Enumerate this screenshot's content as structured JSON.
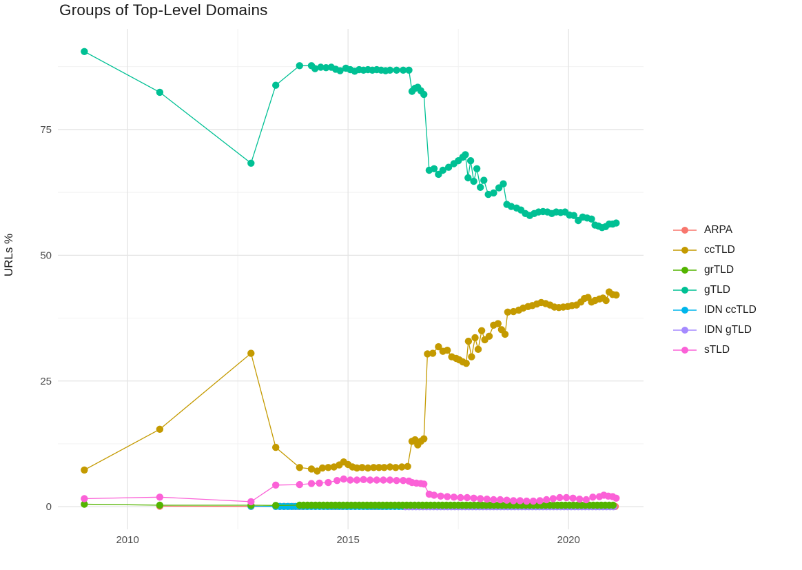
{
  "title": "Groups of Top-Level Domains",
  "y_axis": {
    "title": "URLs %",
    "ticks": [
      0,
      25,
      50,
      75
    ],
    "minor_ticks": [
      12.5,
      37.5,
      62.5,
      87.5
    ],
    "range": [
      -4.5,
      95
    ]
  },
  "x_axis": {
    "ticks": [
      2010,
      2015,
      2020
    ],
    "minor_ticks": [
      2012.5,
      2017.5
    ],
    "range": [
      2008.42,
      2021.7
    ]
  },
  "legend": {
    "items": [
      {
        "label": "ARPA",
        "color": "#F8766D"
      },
      {
        "label": "ccTLD",
        "color": "#C49A00"
      },
      {
        "label": "grTLD",
        "color": "#53B400"
      },
      {
        "label": "gTLD",
        "color": "#00C094"
      },
      {
        "label": "IDN ccTLD",
        "color": "#00B6EB"
      },
      {
        "label": "IDN gTLD",
        "color": "#A58AFF"
      },
      {
        "label": "sTLD",
        "color": "#FB61D7"
      }
    ]
  },
  "chart_data": {
    "type": "line",
    "title": "Groups of Top-Level Domains",
    "xlabel": "",
    "ylabel": "URLs %",
    "x_range": [
      2008.42,
      2021.7
    ],
    "y_range": [
      -4.5,
      95
    ],
    "x_ticks": [
      2010,
      2015,
      2020
    ],
    "y_ticks": [
      0,
      25,
      50,
      75
    ],
    "grid": true,
    "legend_position": "right",
    "series": [
      {
        "name": "ARPA",
        "color": "#F8766D",
        "points": [
          [
            2010.73,
            0.1
          ],
          [
            2012.8,
            0.05
          ]
        ],
        "runs": [
          {
            "from": 2013.36,
            "to": 2021.08,
            "step": 0.1,
            "y": 0.05
          }
        ]
      },
      {
        "name": "IDN ccTLD",
        "color": "#00B6EB",
        "points": [
          [
            2012.8,
            0.1
          ]
        ],
        "runs": [
          {
            "from": 2013.36,
            "to": 2021.08,
            "step": 0.09,
            "y": 0.05
          }
        ]
      },
      {
        "name": "IDN gTLD",
        "color": "#A58AFF",
        "points": [],
        "runs": [
          {
            "from": 2016.3,
            "to": 2021.08,
            "step": 0.08,
            "y": 0.0
          }
        ]
      },
      {
        "name": "grTLD",
        "color": "#53B400",
        "points": [
          [
            2009.02,
            0.5
          ],
          [
            2010.73,
            0.3
          ],
          [
            2012.8,
            0.3
          ],
          [
            2013.36,
            0.25
          ]
        ],
        "runs": [
          {
            "from": 2013.9,
            "to": 2021.08,
            "step": 0.09,
            "y": 0.3
          }
        ]
      },
      {
        "name": "sTLD",
        "color": "#FB61D7",
        "points": [
          [
            2009.02,
            1.6
          ],
          [
            2010.73,
            1.9
          ],
          [
            2012.8,
            1.0
          ],
          [
            2013.36,
            4.3
          ],
          [
            2013.9,
            4.4
          ],
          [
            2014.17,
            4.6
          ],
          [
            2014.35,
            4.7
          ],
          [
            2014.55,
            4.8
          ],
          [
            2014.75,
            5.2
          ],
          [
            2014.9,
            5.5
          ],
          [
            2015.05,
            5.3
          ],
          [
            2015.2,
            5.3
          ],
          [
            2015.35,
            5.4
          ],
          [
            2015.5,
            5.3
          ],
          [
            2015.65,
            5.3
          ],
          [
            2015.8,
            5.3
          ],
          [
            2015.95,
            5.3
          ],
          [
            2016.1,
            5.2
          ],
          [
            2016.25,
            5.2
          ],
          [
            2016.38,
            5.1
          ],
          [
            2016.45,
            4.8
          ],
          [
            2016.55,
            4.7
          ],
          [
            2016.65,
            4.6
          ],
          [
            2016.72,
            4.5
          ],
          [
            2016.84,
            2.5
          ],
          [
            2016.95,
            2.3
          ],
          [
            2017.1,
            2.1
          ],
          [
            2017.25,
            2.0
          ],
          [
            2017.4,
            1.9
          ],
          [
            2017.55,
            1.8
          ],
          [
            2017.7,
            1.8
          ],
          [
            2017.85,
            1.7
          ],
          [
            2018.0,
            1.6
          ],
          [
            2018.15,
            1.5
          ],
          [
            2018.3,
            1.4
          ],
          [
            2018.45,
            1.4
          ],
          [
            2018.6,
            1.3
          ],
          [
            2018.75,
            1.2
          ],
          [
            2018.9,
            1.2
          ],
          [
            2019.05,
            1.1
          ],
          [
            2019.2,
            1.1
          ],
          [
            2019.35,
            1.2
          ],
          [
            2019.5,
            1.4
          ],
          [
            2019.65,
            1.6
          ],
          [
            2019.8,
            1.8
          ],
          [
            2019.95,
            1.8
          ],
          [
            2020.1,
            1.7
          ],
          [
            2020.25,
            1.5
          ],
          [
            2020.4,
            1.4
          ],
          [
            2020.55,
            1.9
          ],
          [
            2020.7,
            2.0
          ],
          [
            2020.8,
            2.3
          ],
          [
            2020.9,
            2.1
          ],
          [
            2021.0,
            2.0
          ],
          [
            2021.08,
            1.7
          ]
        ],
        "runs": []
      },
      {
        "name": "ccTLD",
        "color": "#C49A00",
        "points": [
          [
            2009.02,
            7.3
          ],
          [
            2010.73,
            15.4
          ],
          [
            2012.8,
            30.5
          ],
          [
            2013.36,
            11.8
          ],
          [
            2013.9,
            7.8
          ],
          [
            2014.17,
            7.5
          ],
          [
            2014.3,
            7.1
          ],
          [
            2014.42,
            7.7
          ],
          [
            2014.55,
            7.8
          ],
          [
            2014.68,
            7.9
          ],
          [
            2014.8,
            8.3
          ],
          [
            2014.9,
            8.9
          ],
          [
            2015.0,
            8.4
          ],
          [
            2015.1,
            7.9
          ],
          [
            2015.2,
            7.7
          ],
          [
            2015.32,
            7.8
          ],
          [
            2015.45,
            7.7
          ],
          [
            2015.58,
            7.8
          ],
          [
            2015.7,
            7.8
          ],
          [
            2015.82,
            7.8
          ],
          [
            2015.95,
            7.9
          ],
          [
            2016.08,
            7.8
          ],
          [
            2016.22,
            7.9
          ],
          [
            2016.35,
            8.0
          ],
          [
            2016.45,
            13.0
          ],
          [
            2016.52,
            13.3
          ],
          [
            2016.58,
            12.3
          ],
          [
            2016.65,
            13.0
          ],
          [
            2016.72,
            13.5
          ],
          [
            2016.8,
            30.4
          ],
          [
            2016.92,
            30.5
          ],
          [
            2017.05,
            31.8
          ],
          [
            2017.15,
            30.9
          ],
          [
            2017.25,
            31.1
          ],
          [
            2017.35,
            29.8
          ],
          [
            2017.45,
            29.5
          ],
          [
            2017.52,
            29.2
          ],
          [
            2017.6,
            28.8
          ],
          [
            2017.68,
            28.5
          ],
          [
            2017.73,
            32.9
          ],
          [
            2017.8,
            29.8
          ],
          [
            2017.88,
            33.6
          ],
          [
            2017.95,
            31.3
          ],
          [
            2018.03,
            35.0
          ],
          [
            2018.1,
            33.2
          ],
          [
            2018.2,
            33.9
          ],
          [
            2018.3,
            36.1
          ],
          [
            2018.4,
            36.4
          ],
          [
            2018.48,
            35.2
          ],
          [
            2018.56,
            34.3
          ],
          [
            2018.62,
            38.7
          ],
          [
            2018.75,
            38.8
          ],
          [
            2018.87,
            39.1
          ],
          [
            2018.97,
            39.5
          ],
          [
            2019.08,
            39.8
          ],
          [
            2019.18,
            40.0
          ],
          [
            2019.28,
            40.3
          ],
          [
            2019.38,
            40.6
          ],
          [
            2019.48,
            40.4
          ],
          [
            2019.58,
            40.1
          ],
          [
            2019.68,
            39.7
          ],
          [
            2019.78,
            39.6
          ],
          [
            2019.88,
            39.7
          ],
          [
            2019.98,
            39.8
          ],
          [
            2020.08,
            40.0
          ],
          [
            2020.18,
            40.1
          ],
          [
            2020.28,
            40.7
          ],
          [
            2020.36,
            41.4
          ],
          [
            2020.44,
            41.6
          ],
          [
            2020.52,
            40.7
          ],
          [
            2020.6,
            41.0
          ],
          [
            2020.7,
            41.3
          ],
          [
            2020.78,
            41.5
          ],
          [
            2020.85,
            41.0
          ],
          [
            2020.92,
            42.7
          ],
          [
            2021.0,
            42.2
          ],
          [
            2021.08,
            42.1
          ]
        ],
        "runs": []
      },
      {
        "name": "gTLD",
        "color": "#00C094",
        "points": [
          [
            2009.02,
            90.5
          ],
          [
            2010.73,
            82.4
          ],
          [
            2012.8,
            68.3
          ],
          [
            2013.36,
            83.8
          ],
          [
            2013.9,
            87.7
          ],
          [
            2014.17,
            87.7
          ],
          [
            2014.25,
            87.1
          ],
          [
            2014.38,
            87.4
          ],
          [
            2014.5,
            87.3
          ],
          [
            2014.62,
            87.4
          ],
          [
            2014.72,
            87.0
          ],
          [
            2014.82,
            86.7
          ],
          [
            2014.95,
            87.2
          ],
          [
            2015.05,
            86.9
          ],
          [
            2015.15,
            86.6
          ],
          [
            2015.25,
            86.9
          ],
          [
            2015.35,
            86.8
          ],
          [
            2015.45,
            86.9
          ],
          [
            2015.55,
            86.8
          ],
          [
            2015.65,
            86.9
          ],
          [
            2015.75,
            86.8
          ],
          [
            2015.85,
            86.7
          ],
          [
            2015.95,
            86.8
          ],
          [
            2016.1,
            86.8
          ],
          [
            2016.25,
            86.8
          ],
          [
            2016.38,
            86.8
          ],
          [
            2016.45,
            82.6
          ],
          [
            2016.52,
            83.2
          ],
          [
            2016.58,
            83.4
          ],
          [
            2016.65,
            82.7
          ],
          [
            2016.72,
            82.0
          ],
          [
            2016.84,
            66.9
          ],
          [
            2016.95,
            67.2
          ],
          [
            2017.05,
            66.1
          ],
          [
            2017.15,
            66.9
          ],
          [
            2017.28,
            67.5
          ],
          [
            2017.4,
            68.2
          ],
          [
            2017.5,
            68.8
          ],
          [
            2017.6,
            69.5
          ],
          [
            2017.66,
            70.0
          ],
          [
            2017.72,
            65.4
          ],
          [
            2017.78,
            68.8
          ],
          [
            2017.85,
            64.7
          ],
          [
            2017.92,
            67.2
          ],
          [
            2018.0,
            63.5
          ],
          [
            2018.08,
            64.9
          ],
          [
            2018.18,
            62.1
          ],
          [
            2018.3,
            62.4
          ],
          [
            2018.42,
            63.4
          ],
          [
            2018.52,
            64.2
          ],
          [
            2018.6,
            60.1
          ],
          [
            2018.7,
            59.7
          ],
          [
            2018.82,
            59.4
          ],
          [
            2018.92,
            59.0
          ],
          [
            2019.02,
            58.3
          ],
          [
            2019.12,
            57.9
          ],
          [
            2019.22,
            58.3
          ],
          [
            2019.32,
            58.6
          ],
          [
            2019.42,
            58.7
          ],
          [
            2019.52,
            58.6
          ],
          [
            2019.62,
            58.3
          ],
          [
            2019.72,
            58.6
          ],
          [
            2019.82,
            58.5
          ],
          [
            2019.92,
            58.6
          ],
          [
            2020.02,
            58.0
          ],
          [
            2020.12,
            57.9
          ],
          [
            2020.22,
            56.9
          ],
          [
            2020.32,
            57.6
          ],
          [
            2020.42,
            57.4
          ],
          [
            2020.52,
            57.2
          ],
          [
            2020.6,
            56.0
          ],
          [
            2020.68,
            55.8
          ],
          [
            2020.76,
            55.5
          ],
          [
            2020.84,
            55.7
          ],
          [
            2020.92,
            56.2
          ],
          [
            2021.0,
            56.2
          ],
          [
            2021.08,
            56.4
          ]
        ],
        "runs": []
      }
    ]
  }
}
